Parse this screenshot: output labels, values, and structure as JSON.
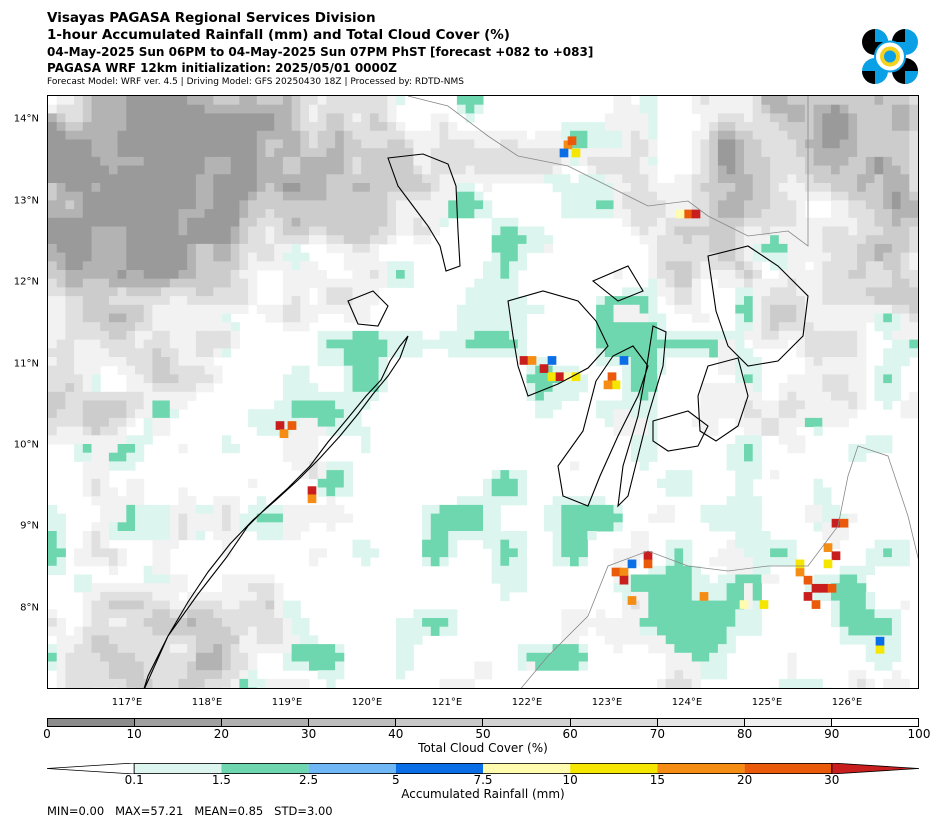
{
  "header": {
    "line1": "Visayas PAGASA Regional Services Division",
    "line2": "1-hour Accumulated Rainfall (mm) and Total Cloud Cover (%)",
    "line3": "04-May-2025 Sun 06PM to 04-May-2025 Sun 07PM PhST [forecast +082 to +083]",
    "line4": "PAGASA WRF 12km initialization: 2025/05/01 0000Z",
    "line5": "Forecast Model: WRF ver. 4.5 | Driving Model: GFS 20250430 18Z | Processed by: RDTD-NMS"
  },
  "map": {
    "lon_range": [
      116.0,
      126.9
    ],
    "lat_range": [
      7.0,
      14.3
    ],
    "lat_ticks": [
      {
        "value": 14,
        "label": "14°N"
      },
      {
        "value": 13,
        "label": "13°N"
      },
      {
        "value": 12,
        "label": "12°N"
      },
      {
        "value": 11,
        "label": "11°N"
      },
      {
        "value": 10,
        "label": "10°N"
      },
      {
        "value": 9,
        "label": "9°N"
      },
      {
        "value": 8,
        "label": "8°N"
      }
    ],
    "lon_ticks": [
      {
        "value": 117,
        "label": "117°E"
      },
      {
        "value": 118,
        "label": "118°E"
      },
      {
        "value": 119,
        "label": "119°E"
      },
      {
        "value": 120,
        "label": "120°E"
      },
      {
        "value": 121,
        "label": "121°E"
      },
      {
        "value": 122,
        "label": "122°E"
      },
      {
        "value": 123,
        "label": "123°E"
      },
      {
        "value": 124,
        "label": "124°E"
      },
      {
        "value": 125,
        "label": "125°E"
      },
      {
        "value": 126,
        "label": "126°E"
      }
    ],
    "rain_cells": [
      {
        "lon": 122.5,
        "lat": 13.7,
        "mm": 15
      },
      {
        "lon": 122.55,
        "lat": 13.75,
        "mm": 25
      },
      {
        "lon": 122.45,
        "lat": 13.6,
        "mm": 5
      },
      {
        "lon": 122.6,
        "lat": 13.6,
        "mm": 10
      },
      {
        "lon": 124.0,
        "lat": 12.85,
        "mm": 20
      },
      {
        "lon": 124.1,
        "lat": 12.85,
        "mm": 30
      },
      {
        "lon": 123.9,
        "lat": 12.85,
        "mm": 7.5
      },
      {
        "lon": 121.95,
        "lat": 11.05,
        "mm": 30
      },
      {
        "lon": 122.05,
        "lat": 11.05,
        "mm": 15
      },
      {
        "lon": 122.2,
        "lat": 10.95,
        "mm": 30
      },
      {
        "lon": 122.3,
        "lat": 10.85,
        "mm": 10
      },
      {
        "lon": 122.4,
        "lat": 10.85,
        "mm": 30
      },
      {
        "lon": 122.5,
        "lat": 10.85,
        "mm": 7.5
      },
      {
        "lon": 122.6,
        "lat": 10.85,
        "mm": 10
      },
      {
        "lon": 122.3,
        "lat": 11.05,
        "mm": 5
      },
      {
        "lon": 123.05,
        "lat": 10.85,
        "mm": 20
      },
      {
        "lon": 123.1,
        "lat": 10.75,
        "mm": 10
      },
      {
        "lon": 123.0,
        "lat": 10.75,
        "mm": 15
      },
      {
        "lon": 123.2,
        "lat": 11.05,
        "mm": 5
      },
      {
        "lon": 118.9,
        "lat": 10.25,
        "mm": 30
      },
      {
        "lon": 118.95,
        "lat": 10.15,
        "mm": 15
      },
      {
        "lon": 119.05,
        "lat": 10.25,
        "mm": 20
      },
      {
        "lon": 119.3,
        "lat": 9.45,
        "mm": 30
      },
      {
        "lon": 119.3,
        "lat": 9.35,
        "mm": 15
      },
      {
        "lon": 125.85,
        "lat": 9.05,
        "mm": 30
      },
      {
        "lon": 125.95,
        "lat": 9.05,
        "mm": 20
      },
      {
        "lon": 125.75,
        "lat": 8.75,
        "mm": 15
      },
      {
        "lon": 125.85,
        "lat": 8.65,
        "mm": 30
      },
      {
        "lon": 125.75,
        "lat": 8.55,
        "mm": 10
      },
      {
        "lon": 125.4,
        "lat": 8.45,
        "mm": 15
      },
      {
        "lon": 125.5,
        "lat": 8.35,
        "mm": 20
      },
      {
        "lon": 125.6,
        "lat": 8.25,
        "mm": 30
      },
      {
        "lon": 125.7,
        "lat": 8.25,
        "mm": 30
      },
      {
        "lon": 125.8,
        "lat": 8.25,
        "mm": 20
      },
      {
        "lon": 125.5,
        "lat": 8.15,
        "mm": 30
      },
      {
        "lon": 125.6,
        "lat": 8.05,
        "mm": 20
      },
      {
        "lon": 125.4,
        "lat": 8.55,
        "mm": 10
      },
      {
        "lon": 123.1,
        "lat": 8.45,
        "mm": 20
      },
      {
        "lon": 123.2,
        "lat": 8.45,
        "mm": 15
      },
      {
        "lon": 123.2,
        "lat": 8.35,
        "mm": 30
      },
      {
        "lon": 123.3,
        "lat": 8.55,
        "mm": 5
      },
      {
        "lon": 123.5,
        "lat": 8.65,
        "mm": 30
      },
      {
        "lon": 123.5,
        "lat": 8.55,
        "mm": 20
      },
      {
        "lon": 123.3,
        "lat": 8.1,
        "mm": 15
      },
      {
        "lon": 124.2,
        "lat": 8.15,
        "mm": 15
      },
      {
        "lon": 124.7,
        "lat": 8.05,
        "mm": 7.5
      },
      {
        "lon": 124.95,
        "lat": 8.05,
        "mm": 10
      },
      {
        "lon": 126.4,
        "lat": 7.5,
        "mm": 10
      },
      {
        "lon": 126.4,
        "lat": 7.6,
        "mm": 5
      }
    ]
  },
  "cloud_colorbar": {
    "title": "Total Cloud Cover (%)",
    "ticks": [
      "0",
      "10",
      "20",
      "30",
      "40",
      "50",
      "60",
      "70",
      "80",
      "90",
      "100"
    ],
    "colors": [
      "#8c8c8c",
      "#a0a0a0",
      "#b0b0b0",
      "#bdbdbd",
      "#c8c8c8",
      "#d2d2d2",
      "#dcdcdc",
      "#e6e6e6",
      "#f0f0f0",
      "#ffffff"
    ]
  },
  "rain_colorbar": {
    "title": "Accumulated Rainfall (mm)",
    "ticks": [
      "0.1",
      "1.5",
      "2.5",
      "5",
      "7.5",
      "10",
      "15",
      "20",
      "30"
    ],
    "colors": [
      "#dcf5ee",
      "#6fd7b0",
      "#6fb8f5",
      "#0a6ee6",
      "#fffcb0",
      "#f5e600",
      "#f58c14",
      "#eb5a0a"
    ],
    "under_color": "#ffffff",
    "over_color": "#c81e1e"
  },
  "stats": {
    "text": "MIN=0.00   MAX=57.21   MEAN=0.85   STD=3.00"
  }
}
